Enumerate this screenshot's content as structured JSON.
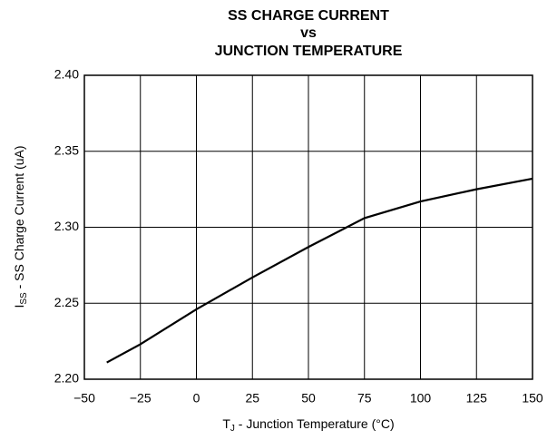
{
  "chart_data": {
    "type": "line",
    "title": [
      "SS CHARGE CURRENT",
      "vs",
      "JUNCTION TEMPERATURE"
    ],
    "y_label": [
      "I",
      "SS",
      " - SS Charge Current (uA)"
    ],
    "x_label": [
      "T",
      "J",
      " - Junction Temperature (°C)"
    ],
    "x": [
      -40,
      -25,
      0,
      25,
      50,
      75,
      100,
      125,
      150
    ],
    "series": [
      {
        "color": "#000000",
        "values": [
          2.211,
          2.223,
          2.246,
          2.267,
          2.287,
          2.306,
          2.317,
          2.325,
          2.332
        ]
      }
    ],
    "xlim": [
      -50,
      150
    ],
    "xticks": [
      {
        "value": -50,
        "label": "−50"
      },
      {
        "value": -25,
        "label": "−25"
      },
      0,
      25,
      50,
      75,
      100,
      125,
      150
    ],
    "ylim": [
      2.2,
      2.4
    ],
    "yticks": [
      {
        "value": 2.2,
        "label": "2.20"
      },
      2.25,
      {
        "value": 2.3,
        "label": "2.30"
      },
      2.35,
      {
        "value": 2.4,
        "label": "2.40"
      }
    ],
    "grid": true
  }
}
